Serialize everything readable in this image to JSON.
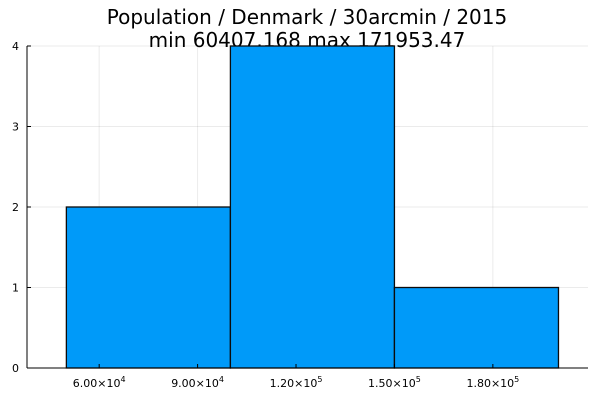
{
  "chart_data": {
    "type": "bar",
    "title": "Population / Denmark / 30arcmin / 2015",
    "subtitle": "min 60407.168  max 171953.47",
    "bins": [
      {
        "x0": 50000,
        "x1": 100000,
        "count": 2
      },
      {
        "x0": 100000,
        "x1": 150000,
        "count": 4
      },
      {
        "x0": 150000,
        "x1": 200000,
        "count": 1
      }
    ],
    "xlim": [
      38000,
      209000
    ],
    "ylim": [
      0,
      4
    ],
    "x_ticks": [
      {
        "value": 60000,
        "mantissa": "6.00",
        "base": "×10",
        "exp": "4"
      },
      {
        "value": 90000,
        "mantissa": "9.00",
        "base": "×10",
        "exp": "4"
      },
      {
        "value": 120000,
        "mantissa": "1.20",
        "base": "×10",
        "exp": "5"
      },
      {
        "value": 150000,
        "mantissa": "1.50",
        "base": "×10",
        "exp": "5"
      },
      {
        "value": 180000,
        "mantissa": "1.80",
        "base": "×10",
        "exp": "5"
      }
    ],
    "y_ticks": [
      {
        "value": 0,
        "label": "0"
      },
      {
        "value": 1,
        "label": "1"
      },
      {
        "value": 2,
        "label": "2"
      },
      {
        "value": 3,
        "label": "3"
      },
      {
        "value": 4,
        "label": "4"
      }
    ],
    "grid": true,
    "legend": "none",
    "bar_color": "#009af9",
    "edge_color": "#0c0c0c"
  }
}
